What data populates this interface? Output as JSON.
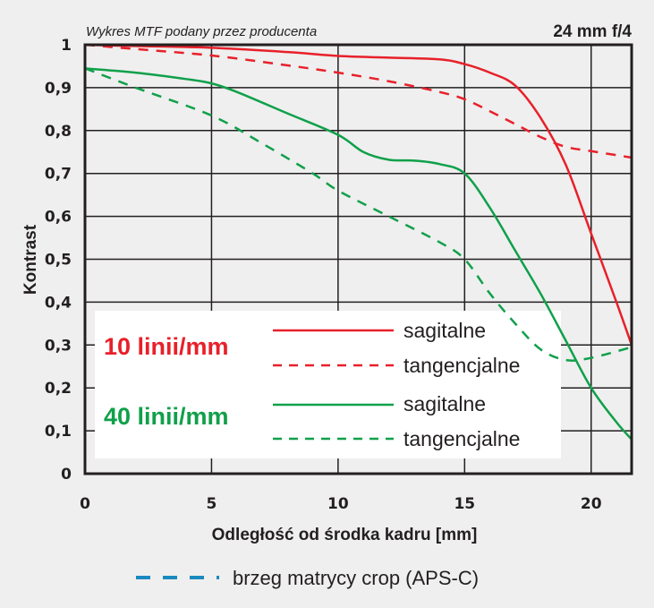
{
  "chart_data": {
    "type": "line",
    "title": "Wykres MTF podany przez producenta",
    "subtitle": "24 mm f/4",
    "xlabel": "Odległość od środka kadru [mm]",
    "ylabel": "Kontrast",
    "xlim": [
      0,
      21.6
    ],
    "ylim": [
      0,
      1
    ],
    "grid": true,
    "x_ticks": [
      "0",
      "5",
      "10",
      "15",
      "20"
    ],
    "x_tick_values": [
      0,
      5,
      10,
      15,
      20
    ],
    "y_ticks": [
      "0",
      "0,1",
      "0,2",
      "0,3",
      "0,4",
      "0,5",
      "0,6",
      "0,7",
      "0,8",
      "0,9",
      "1"
    ],
    "y_tick_values": [
      0,
      0.1,
      0.2,
      0.3,
      0.4,
      0.5,
      0.6,
      0.7,
      0.8,
      0.9,
      1
    ],
    "legend": {
      "placement": "bottom-left-inside",
      "groups": [
        {
          "label": "10 linii/mm",
          "color": "#e8202a",
          "entries": [
            "sagitalne",
            "tangencjalne"
          ]
        },
        {
          "label": "40 linii/mm",
          "color": "#10a04a",
          "entries": [
            "sagitalne",
            "tangencjalne"
          ]
        }
      ]
    },
    "footer_legend": {
      "label": "brzeg matrycy crop (APS-C)",
      "color": "#1a8ac0"
    },
    "series": [
      {
        "name": "10 linii/mm sagitalne",
        "color": "#e8202a",
        "dashed": false,
        "x": [
          0,
          2,
          5,
          8,
          10,
          12,
          14,
          15,
          16,
          17,
          18,
          19,
          20,
          21,
          21.6
        ],
        "y": [
          1.0,
          0.997,
          0.993,
          0.983,
          0.974,
          0.97,
          0.966,
          0.955,
          0.935,
          0.905,
          0.83,
          0.72,
          0.56,
          0.4,
          0.3
        ]
      },
      {
        "name": "10 linii/mm tangencjalne",
        "color": "#e8202a",
        "dashed": true,
        "x": [
          0,
          2,
          5,
          8,
          10,
          12,
          14,
          15,
          16,
          17,
          18,
          19,
          20,
          21.6
        ],
        "y": [
          1.0,
          0.99,
          0.975,
          0.952,
          0.935,
          0.915,
          0.89,
          0.873,
          0.845,
          0.815,
          0.785,
          0.762,
          0.752,
          0.737
        ]
      },
      {
        "name": "40 linii/mm sagitalne",
        "color": "#10a04a",
        "dashed": false,
        "x": [
          0,
          2,
          4,
          5,
          6,
          8,
          10,
          11,
          12,
          13,
          14,
          15,
          16,
          17,
          18,
          19,
          20,
          21,
          21.6
        ],
        "y": [
          0.945,
          0.935,
          0.92,
          0.91,
          0.89,
          0.84,
          0.79,
          0.75,
          0.732,
          0.73,
          0.722,
          0.7,
          0.62,
          0.52,
          0.42,
          0.31,
          0.2,
          0.12,
          0.08
        ]
      },
      {
        "name": "40 linii/mm tangencjalne",
        "color": "#10a04a",
        "dashed": true,
        "x": [
          0,
          2,
          5,
          7,
          9,
          10,
          12,
          14,
          15,
          16,
          17,
          18,
          19,
          20,
          21.6
        ],
        "y": [
          0.945,
          0.9,
          0.835,
          0.77,
          0.7,
          0.66,
          0.6,
          0.54,
          0.5,
          0.42,
          0.35,
          0.29,
          0.265,
          0.27,
          0.295
        ]
      }
    ]
  }
}
